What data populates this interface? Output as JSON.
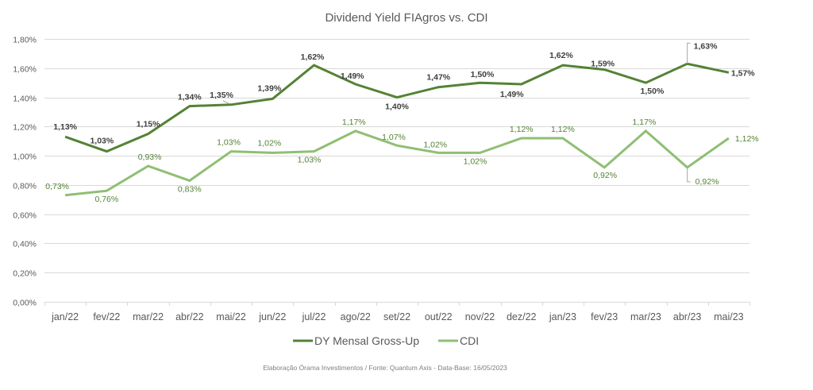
{
  "chart_data": {
    "type": "line",
    "title": "Dividend Yield FIAgros vs. CDI",
    "xlabel": "",
    "ylabel": "",
    "ylim": [
      0,
      1.8
    ],
    "yticks": [
      0,
      0.2,
      0.4,
      0.6,
      0.8,
      1.0,
      1.2,
      1.4,
      1.6,
      1.8
    ],
    "ytick_labels": [
      "0,00%",
      "0,20%",
      "0,40%",
      "0,60%",
      "0,80%",
      "1,00%",
      "1,20%",
      "1,40%",
      "1,60%",
      "1,80%"
    ],
    "grid": true,
    "legend_position": "bottom",
    "categories": [
      "jan/22",
      "fev/22",
      "mar/22",
      "abr/22",
      "mai/22",
      "jun/22",
      "jul/22",
      "ago/22",
      "set/22",
      "out/22",
      "nov/22",
      "dez/22",
      "jan/23",
      "fev/23",
      "mar/23",
      "abr/23",
      "mai/23"
    ],
    "series": [
      {
        "name": "DY Mensal Gross-Up",
        "color": "#548235",
        "values": [
          1.13,
          1.03,
          1.15,
          1.34,
          1.35,
          1.39,
          1.62,
          1.49,
          1.4,
          1.47,
          1.5,
          1.49,
          1.62,
          1.59,
          1.5,
          1.63,
          1.57
        ],
        "labels": [
          "1,13%",
          "1,03%",
          "1,15%",
          "1,34%",
          "1,35%",
          "1,39%",
          "1,62%",
          "1,49%",
          "1,40%",
          "1,47%",
          "1,50%",
          "1,49%",
          "1,62%",
          "1,59%",
          "1,50%",
          "1,63%",
          "1,57%"
        ]
      },
      {
        "name": "CDI",
        "color": "#8fbf73",
        "values": [
          0.73,
          0.76,
          0.93,
          0.83,
          1.03,
          1.02,
          1.03,
          1.17,
          1.07,
          1.02,
          1.02,
          1.12,
          1.12,
          0.92,
          1.17,
          0.92,
          1.12
        ],
        "labels": [
          "0,73%",
          "0,76%",
          "0,93%",
          "0,83%",
          "1,03%",
          "1,02%",
          "1,03%",
          "1,17%",
          "1,07%",
          "1,02%",
          "1,02%",
          "1,12%",
          "1,12%",
          "0,92%",
          "1,17%",
          "0,92%",
          "1,12%"
        ]
      }
    ],
    "footnote": "Elaboração Órama Investimentos / Fonte: Quantum Axis - Data-Base: 16/05/2023"
  }
}
